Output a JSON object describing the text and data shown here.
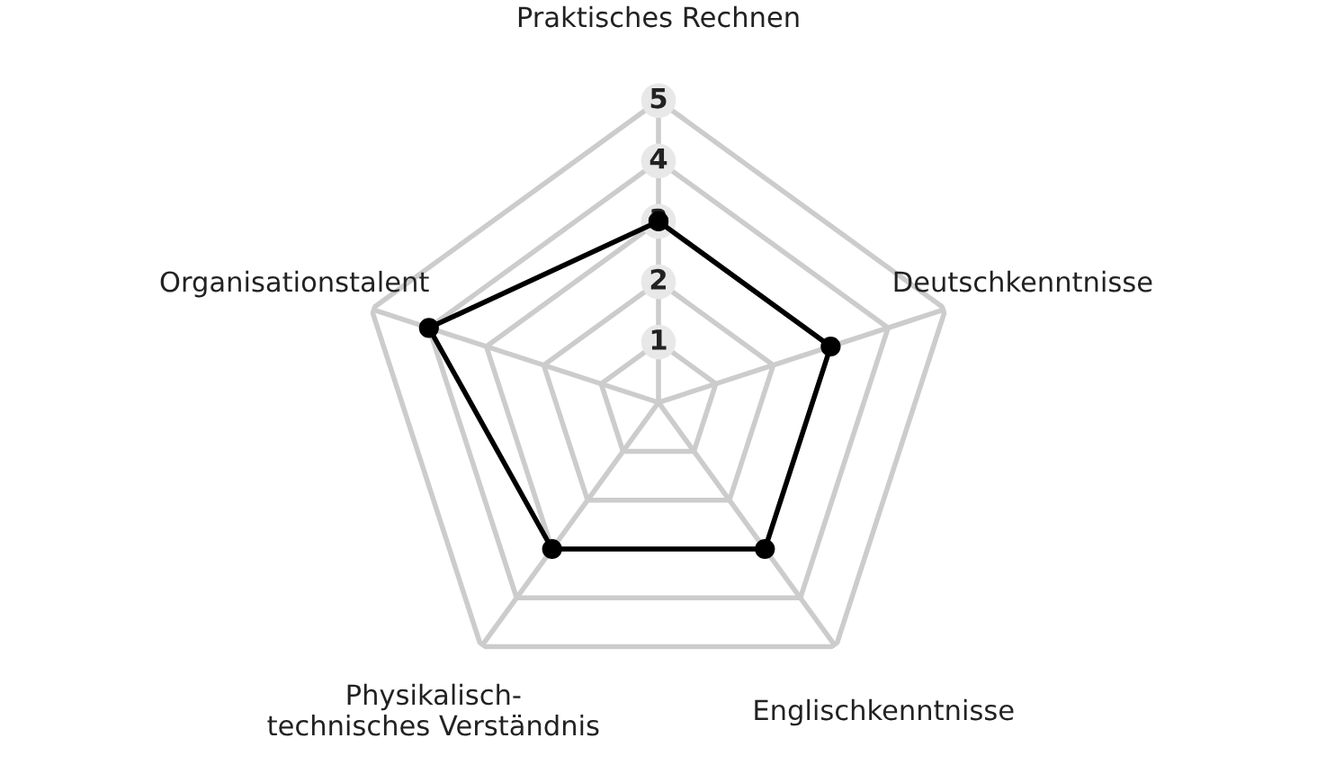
{
  "chart_data": {
    "type": "radar",
    "categories": [
      "Praktisches Rechnen",
      "Deutschkenntnisse",
      "Englischkenntnisse",
      "Physikalisch-\ntechnisches Verständnis",
      "Organisationstalent"
    ],
    "series": [
      {
        "color": "#000000",
        "values": [
          3,
          3,
          3,
          3,
          4
        ]
      }
    ],
    "ylim": [
      0,
      5
    ],
    "yticks": [
      1,
      2,
      3,
      4,
      5
    ],
    "grid": true,
    "marker": "circle",
    "line_style": "solid",
    "legend": false
  }
}
